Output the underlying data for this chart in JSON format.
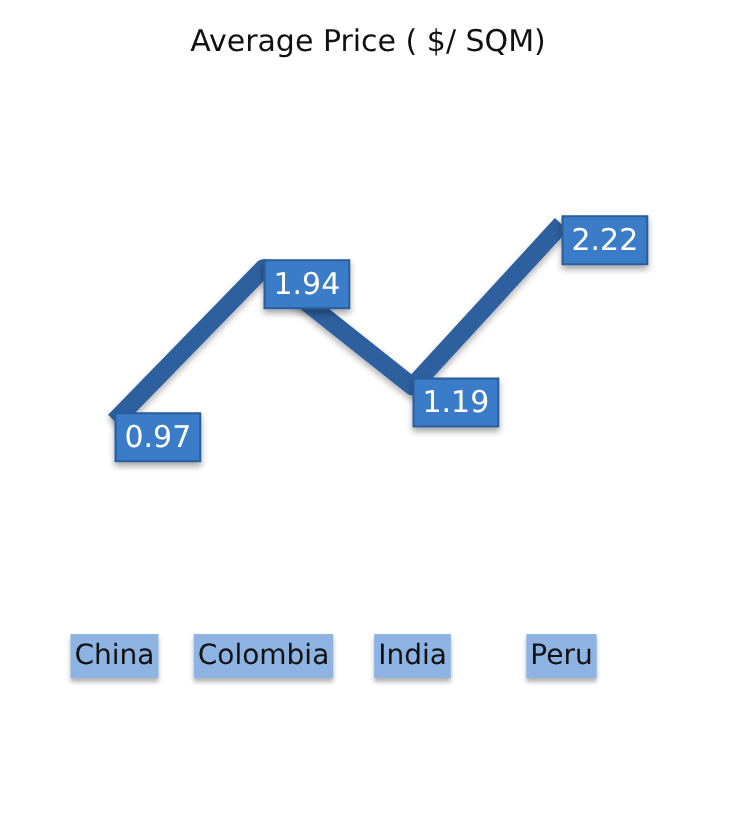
{
  "chart_data": {
    "type": "line",
    "title": "Average Price ( $/ SQM)",
    "categories": [
      "China",
      "Colombia",
      "India",
      "Peru"
    ],
    "series": [
      {
        "color": "#2e5f9e",
        "values": [
          0.97,
          1.94,
          1.19,
          2.22
        ]
      }
    ],
    "data_labels": true,
    "grid": false,
    "marker": "none",
    "line_style": "solid"
  }
}
